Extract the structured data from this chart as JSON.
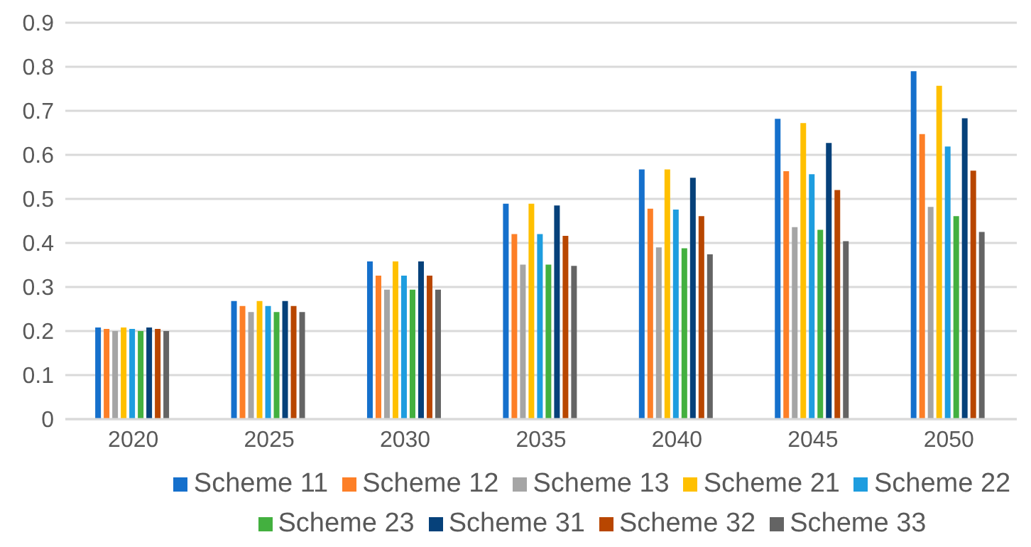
{
  "chart_data": {
    "type": "bar",
    "categories": [
      "2020",
      "2025",
      "2030",
      "2035",
      "2040",
      "2045",
      "2050"
    ],
    "series": [
      {
        "name": "Scheme 11",
        "color": "#1570cc",
        "values": [
          0.208,
          0.268,
          0.358,
          0.489,
          0.567,
          0.682,
          0.79
        ]
      },
      {
        "name": "Scheme 12",
        "color": "#fd7f27",
        "values": [
          0.205,
          0.257,
          0.326,
          0.42,
          0.478,
          0.563,
          0.647
        ]
      },
      {
        "name": "Scheme 13",
        "color": "#a5a5a5",
        "values": [
          0.2,
          0.243,
          0.294,
          0.351,
          0.39,
          0.436,
          0.482
        ]
      },
      {
        "name": "Scheme 21",
        "color": "#ffc000",
        "values": [
          0.208,
          0.268,
          0.358,
          0.489,
          0.567,
          0.672,
          0.757
        ]
      },
      {
        "name": "Scheme 22",
        "color": "#1e9ddf",
        "values": [
          0.205,
          0.257,
          0.326,
          0.42,
          0.476,
          0.556,
          0.619
        ]
      },
      {
        "name": "Scheme 23",
        "color": "#43b03f",
        "values": [
          0.2,
          0.243,
          0.294,
          0.351,
          0.388,
          0.43,
          0.461
        ]
      },
      {
        "name": "Scheme 31",
        "color": "#06417a",
        "values": [
          0.208,
          0.268,
          0.358,
          0.485,
          0.548,
          0.627,
          0.683
        ]
      },
      {
        "name": "Scheme 32",
        "color": "#b84600",
        "values": [
          0.205,
          0.257,
          0.326,
          0.416,
          0.461,
          0.52,
          0.564
        ]
      },
      {
        "name": "Scheme 33",
        "color": "#646464",
        "values": [
          0.2,
          0.243,
          0.294,
          0.348,
          0.374,
          0.404,
          0.425
        ]
      }
    ],
    "ylim": [
      0,
      0.9
    ],
    "yticks": [
      0,
      0.1,
      0.2,
      0.3,
      0.4,
      0.5,
      0.6,
      0.7,
      0.8,
      0.9
    ],
    "grid": "y",
    "legend": "bottom"
  }
}
